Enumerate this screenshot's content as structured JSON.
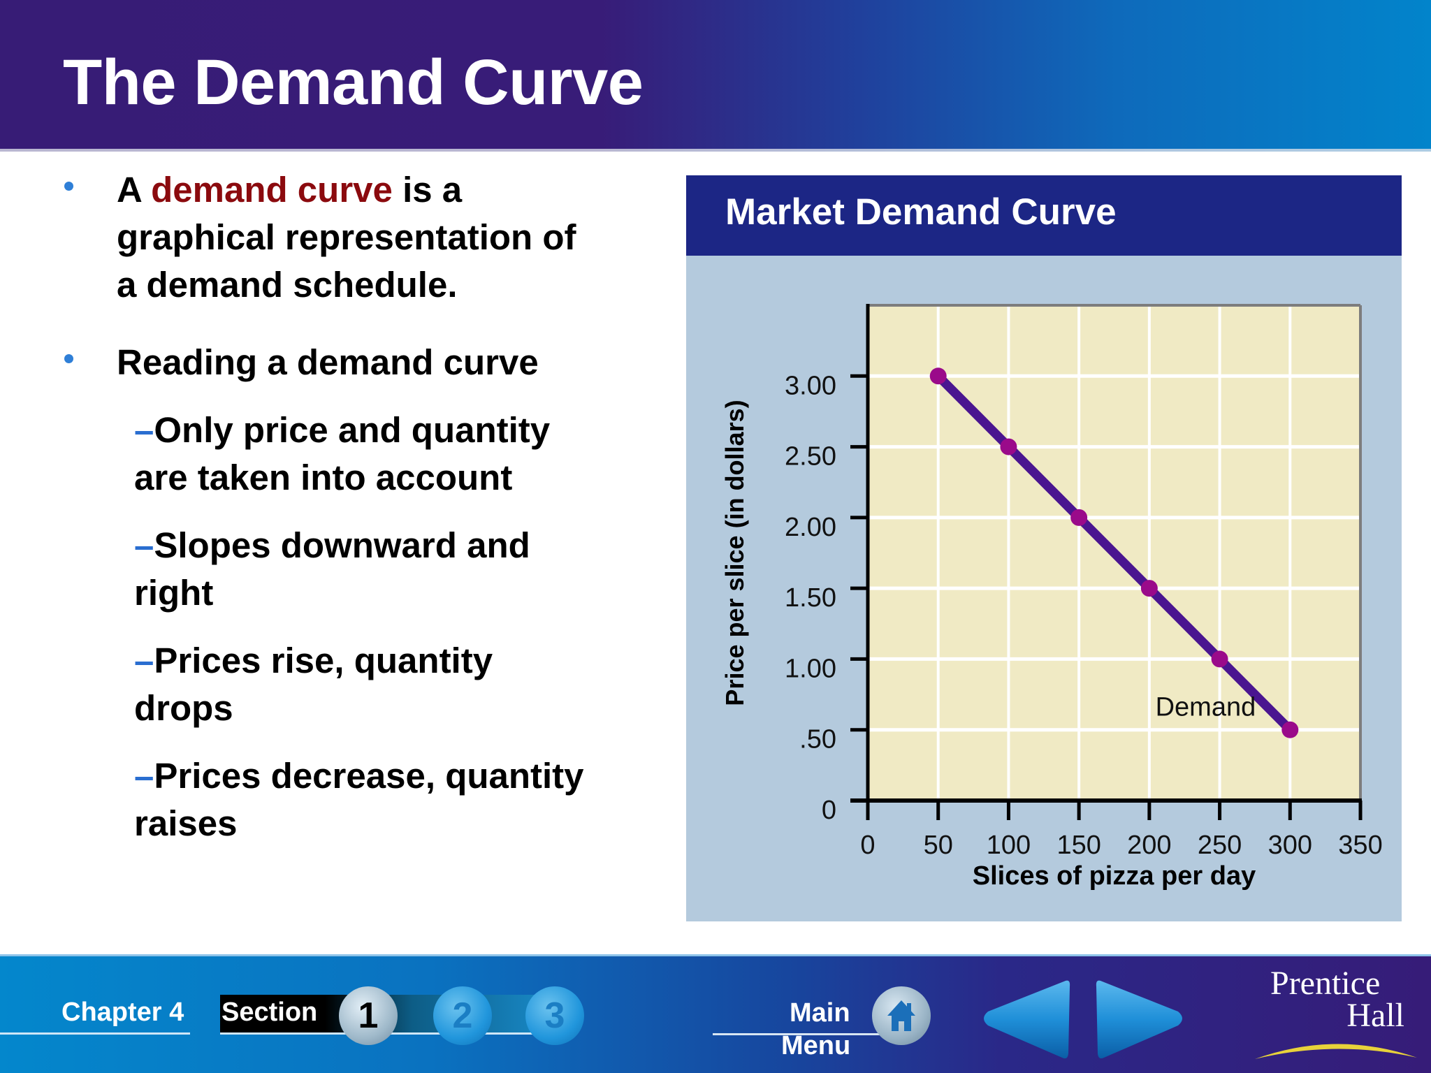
{
  "slide": {
    "title": "The Demand Curve"
  },
  "bullets": [
    {
      "prefix": "A ",
      "highlight": "demand curve",
      "suffix_line1": " is a",
      "line2": "graphical representation of",
      "line3": "a demand schedule."
    },
    {
      "text": "Reading a demand curve",
      "sub_items": [
        {
          "dash": "–",
          "line1": "Only price and quantity",
          "line2": "are taken into account"
        },
        {
          "dash": "–",
          "line1": "Slopes downward and",
          "line2": "right"
        },
        {
          "dash": "–",
          "line1": "Prices rise, quantity",
          "line2": "drops"
        },
        {
          "dash": "–",
          "line1": "Prices decrease, quantity",
          "line2": "raises"
        }
      ]
    }
  ],
  "colors": {
    "accent_red": "#8b0a0e",
    "bullet_blue": "#2f7fd7",
    "panel_header": "#1c2685",
    "panel_bg": "#b4cadd",
    "plot_bg": "#f0eac4",
    "line": "#4a1590",
    "marker": "#9a0a8a"
  },
  "chart_panel": {
    "title": "Market Demand Curve"
  },
  "chart_data": {
    "type": "line",
    "title": "Market Demand Curve",
    "xlabel": "Slices of pizza per day",
    "ylabel": "Price per slice (in dollars)",
    "x": [
      50,
      100,
      150,
      200,
      250,
      300
    ],
    "series": [
      {
        "name": "Demand",
        "values": [
          3.0,
          2.5,
          2.0,
          1.5,
          1.0,
          0.5
        ]
      }
    ],
    "x_ticks": [
      "0",
      "50",
      "100",
      "150",
      "200",
      "250",
      "300",
      "350"
    ],
    "y_ticks": [
      "0",
      ".50",
      "1.00",
      "1.50",
      "2.00",
      "2.50",
      "3.00"
    ],
    "xlim": [
      0,
      350
    ],
    "ylim": [
      0,
      3.5
    ],
    "grid": true,
    "annotations": [
      {
        "text": "Demand",
        "x": 240,
        "y": 0.6
      }
    ],
    "legend": "none"
  },
  "footer": {
    "chapter_label": "Chapter 4",
    "section_label": "Section",
    "section_buttons": [
      {
        "label": "1",
        "active": true
      },
      {
        "label": "2",
        "active": false
      },
      {
        "label": "3",
        "active": false
      }
    ],
    "main_menu_line1": "Main",
    "main_menu_line2": "Menu",
    "home_icon": "home-icon",
    "prev_icon": "prev-arrow-icon",
    "next_icon": "next-arrow-icon",
    "publisher_line1": "Prentice",
    "publisher_line2": "Hall"
  }
}
